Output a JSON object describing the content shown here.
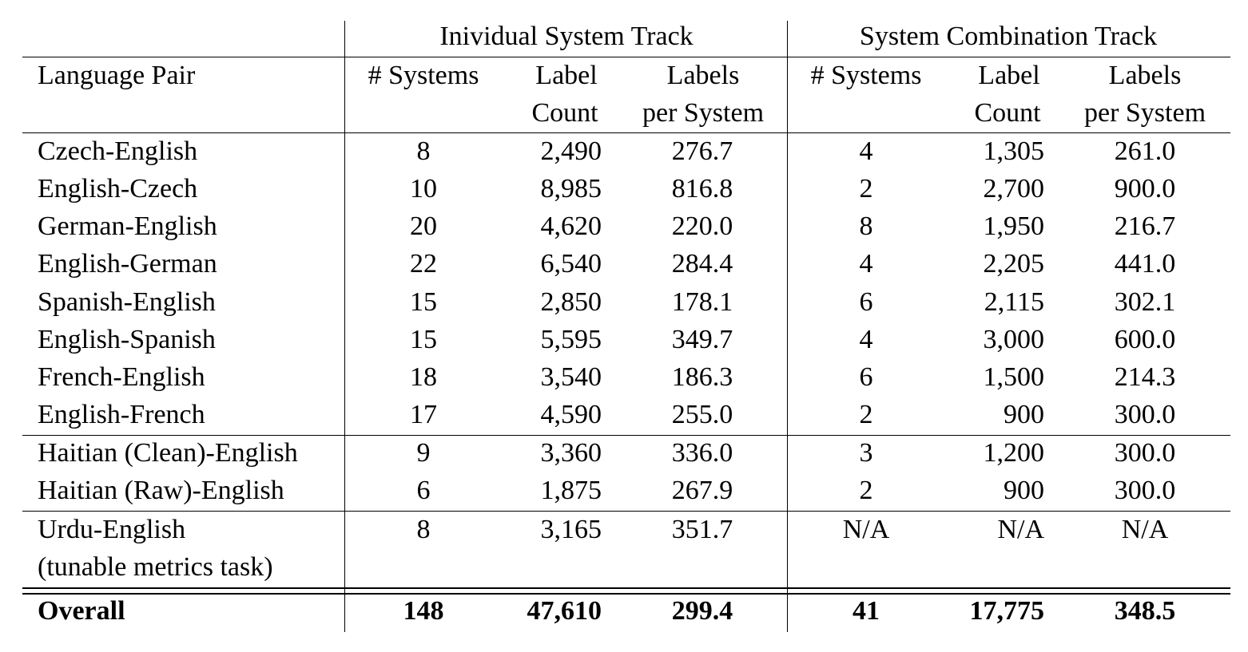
{
  "table": {
    "group_headers": [
      "Inividual System Track",
      "System Combination Track"
    ],
    "col_header": {
      "lang": "Language Pair",
      "systems": "# Systems",
      "label_l1": "Label",
      "label_l2": "Count",
      "lps_l1": "Labels",
      "lps_l2": "per System"
    },
    "rows": [
      {
        "lang": "Czech-English",
        "ind": [
          "8",
          "2,490",
          "276.7"
        ],
        "comb": [
          "4",
          "1,305",
          "261.0"
        ]
      },
      {
        "lang": "English-Czech",
        "ind": [
          "10",
          "8,985",
          "816.8"
        ],
        "comb": [
          "2",
          "2,700",
          "900.0"
        ]
      },
      {
        "lang": "German-English",
        "ind": [
          "20",
          "4,620",
          "220.0"
        ],
        "comb": [
          "8",
          "1,950",
          "216.7"
        ]
      },
      {
        "lang": "English-German",
        "ind": [
          "22",
          "6,540",
          "284.4"
        ],
        "comb": [
          "4",
          "2,205",
          "441.0"
        ]
      },
      {
        "lang": "Spanish-English",
        "ind": [
          "15",
          "2,850",
          "178.1"
        ],
        "comb": [
          "6",
          "2,115",
          "302.1"
        ]
      },
      {
        "lang": "English-Spanish",
        "ind": [
          "15",
          "5,595",
          "349.7"
        ],
        "comb": [
          "4",
          "3,000",
          "600.0"
        ]
      },
      {
        "lang": "French-English",
        "ind": [
          "18",
          "3,540",
          "186.3"
        ],
        "comb": [
          "6",
          "1,500",
          "214.3"
        ]
      },
      {
        "lang": "English-French",
        "ind": [
          "17",
          "4,590",
          "255.0"
        ],
        "comb": [
          "2",
          "900",
          "300.0"
        ]
      },
      {
        "lang": "Haitian (Clean)-English",
        "ind": [
          "9",
          "3,360",
          "336.0"
        ],
        "comb": [
          "3",
          "1,200",
          "300.0"
        ]
      },
      {
        "lang": "Haitian (Raw)-English",
        "ind": [
          "6",
          "1,875",
          "267.9"
        ],
        "comb": [
          "2",
          "900",
          "300.0"
        ]
      },
      {
        "lang": "Urdu-English",
        "ind": [
          "8",
          "3,165",
          "351.7"
        ],
        "comb": [
          "N/A",
          "N/A",
          "N/A"
        ]
      }
    ],
    "urdu_note": "(tunable metrics task)",
    "overall": {
      "lang": "Overall",
      "ind": [
        "148",
        "47,610",
        "299.4"
      ],
      "comb": [
        "41",
        "17,775",
        "348.5"
      ]
    }
  }
}
